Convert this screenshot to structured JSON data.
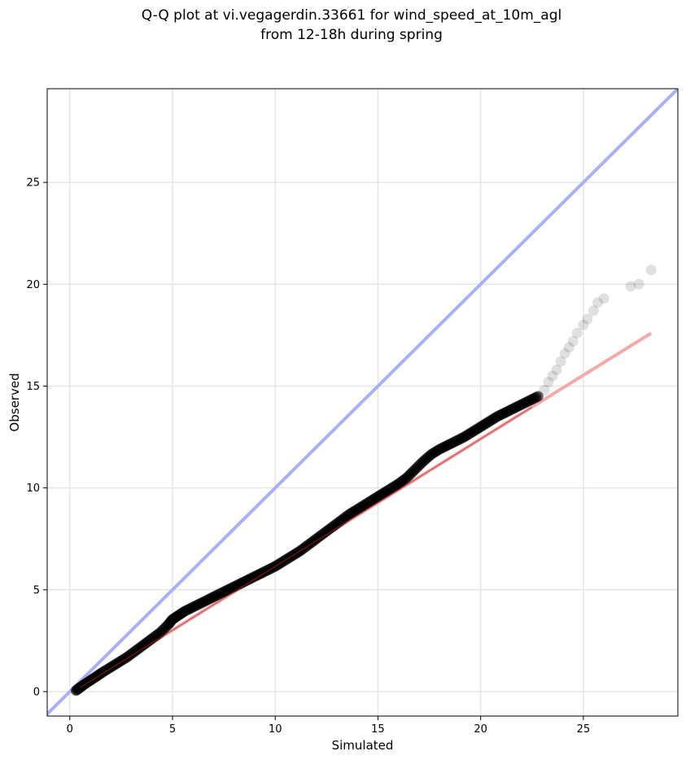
{
  "chart_data": {
    "type": "scatter",
    "title": [
      "Q-Q plot at vi.vegagerdin.33661 for wind_speed_at_10m_agl",
      "from 12-18h during spring"
    ],
    "xlabel": "Simulated",
    "ylabel": "Observed",
    "xlim": [
      -1.1,
      29.6
    ],
    "ylim": [
      -1.2,
      29.6
    ],
    "xticks": [
      0,
      5,
      10,
      15,
      20,
      25
    ],
    "yticks": [
      0,
      5,
      10,
      15,
      20,
      25
    ],
    "grid": true,
    "colors": {
      "identity": "#aab0f5",
      "fit": "#f5aaaa",
      "fit_core": "#b22222",
      "points": "#000000"
    },
    "identity_line": {
      "label": "y = x"
    },
    "fit_line": {
      "x": [
        0.5,
        28.3
      ],
      "y": [
        0.2,
        17.6
      ]
    },
    "quantiles": {
      "x": [
        0.3,
        0.5,
        0.7,
        1.0,
        1.3,
        1.6,
        2.0,
        2.4,
        2.8,
        3.2,
        3.6,
        4.0,
        4.4,
        4.8,
        5.0,
        5.3,
        5.6,
        6.0,
        6.4,
        6.8,
        7.2,
        7.6,
        8.0,
        8.4,
        8.8,
        9.2,
        9.6,
        10.0,
        10.4,
        10.8,
        11.2,
        11.6,
        12.0,
        12.4,
        12.8,
        13.2,
        13.6,
        14.0,
        14.4,
        14.8,
        15.2,
        15.6,
        16.0,
        16.4,
        16.8,
        17.2,
        17.6,
        18.0,
        18.4,
        18.8,
        19.2,
        19.6,
        20.0,
        20.4,
        20.8,
        21.2,
        21.6,
        22.0,
        22.4,
        22.8,
        23.1,
        23.3,
        23.5,
        23.7,
        23.9,
        24.1,
        24.3,
        24.5,
        24.7,
        25.0,
        25.2,
        25.5,
        25.7,
        26.0,
        27.3,
        27.7,
        28.3
      ],
      "y": [
        0.05,
        0.2,
        0.35,
        0.55,
        0.75,
        0.95,
        1.2,
        1.45,
        1.7,
        2.0,
        2.3,
        2.6,
        2.9,
        3.3,
        3.55,
        3.75,
        3.95,
        4.15,
        4.35,
        4.55,
        4.75,
        4.95,
        5.15,
        5.35,
        5.55,
        5.75,
        5.95,
        6.15,
        6.4,
        6.65,
        6.9,
        7.2,
        7.5,
        7.8,
        8.1,
        8.4,
        8.7,
        8.95,
        9.2,
        9.45,
        9.7,
        9.95,
        10.2,
        10.5,
        10.9,
        11.3,
        11.65,
        11.9,
        12.1,
        12.3,
        12.5,
        12.75,
        13.0,
        13.25,
        13.5,
        13.7,
        13.9,
        14.1,
        14.3,
        14.5,
        14.8,
        15.2,
        15.5,
        15.8,
        16.2,
        16.6,
        16.9,
        17.2,
        17.6,
        18.0,
        18.3,
        18.7,
        19.1,
        19.3,
        19.9,
        20.0,
        20.7
      ]
    }
  }
}
